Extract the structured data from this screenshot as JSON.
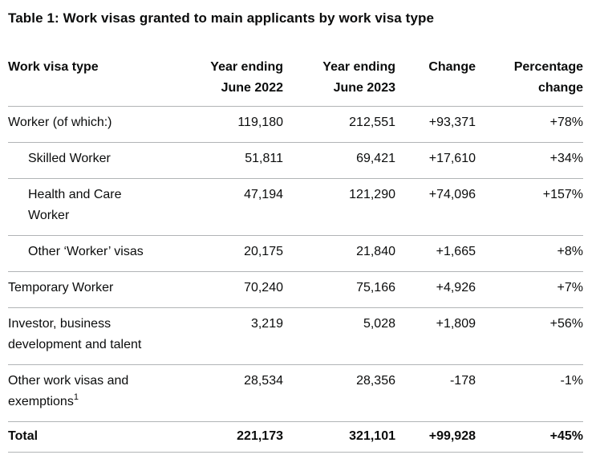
{
  "page": {
    "title": "Table 1: Work visas granted to main applicants by work visa type"
  },
  "colors": {
    "text": "#0b0c0c",
    "border": "#b1b4b6",
    "background": "#ffffff"
  },
  "table": {
    "headers": {
      "visa_type": "Work visa type",
      "ye2022_line1": "Year ending",
      "ye2022_line2": "June 2022",
      "ye2023_line1": "Year ending",
      "ye2023_line2": "June 2023",
      "change": "Change",
      "pct_line1": "Percentage",
      "pct_line2": "change"
    },
    "rows": [
      {
        "label": "Worker (of which:)",
        "ye2022": "119,180",
        "ye2023": "212,551",
        "change": "+93,371",
        "pct": "+78%"
      },
      {
        "label": "Skilled Worker",
        "ye2022": "51,811",
        "ye2023": "69,421",
        "change": "+17,610",
        "pct": "+34%"
      },
      {
        "label": "Health and Care Worker",
        "ye2022": "47,194",
        "ye2023": "121,290",
        "change": "+74,096",
        "pct": "+157%"
      },
      {
        "label": "Other ‘Worker’ visas",
        "ye2022": "20,175",
        "ye2023": "21,840",
        "change": "+1,665",
        "pct": "+8%"
      },
      {
        "label": "Temporary Worker",
        "ye2022": "70,240",
        "ye2023": "75,166",
        "change": "+4,926",
        "pct": "+7%"
      },
      {
        "label": "Investor, business development and talent",
        "ye2022": "3,219",
        "ye2023": "5,028",
        "change": "+1,809",
        "pct": "+56%"
      },
      {
        "label": "Other work visas and exemptions",
        "footnote": "1",
        "ye2022": "28,534",
        "ye2023": "28,356",
        "change": "-178",
        "pct": "-1%"
      },
      {
        "label": "Total",
        "ye2022": "221,173",
        "ye2023": "321,101",
        "change": "+99,928",
        "pct": "+45%"
      }
    ]
  }
}
